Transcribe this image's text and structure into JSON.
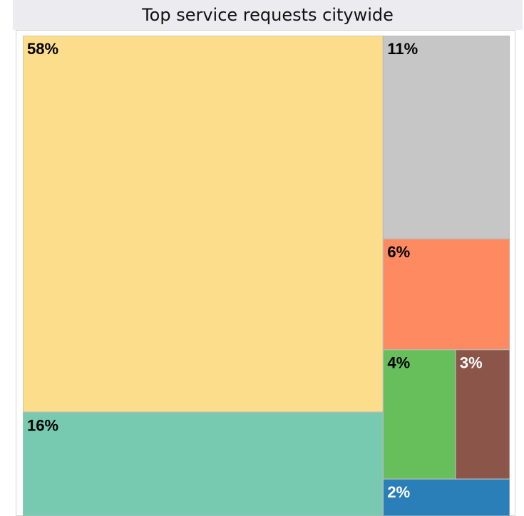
{
  "chart_data": {
    "type": "treemap",
    "title": "Top service requests citywide",
    "tiles": [
      {
        "label": "58%",
        "value": 58,
        "color": "#fbdd8c",
        "text_color": "#000000"
      },
      {
        "label": "16%",
        "value": 16,
        "color": "#77caaf",
        "text_color": "#000000"
      },
      {
        "label": "11%",
        "value": 11,
        "color": "#c6c6c6",
        "text_color": "#000000"
      },
      {
        "label": "6%",
        "value": 6,
        "color": "#fd8a60",
        "text_color": "#000000"
      },
      {
        "label": "4%",
        "value": 4,
        "color": "#66bf5a",
        "text_color": "#000000"
      },
      {
        "label": "3%",
        "value": 3,
        "color": "#8b5649",
        "text_color": "#ffffff"
      },
      {
        "label": "2%",
        "value": 2,
        "color": "#2a7fb8",
        "text_color": "#ffffff"
      }
    ]
  }
}
